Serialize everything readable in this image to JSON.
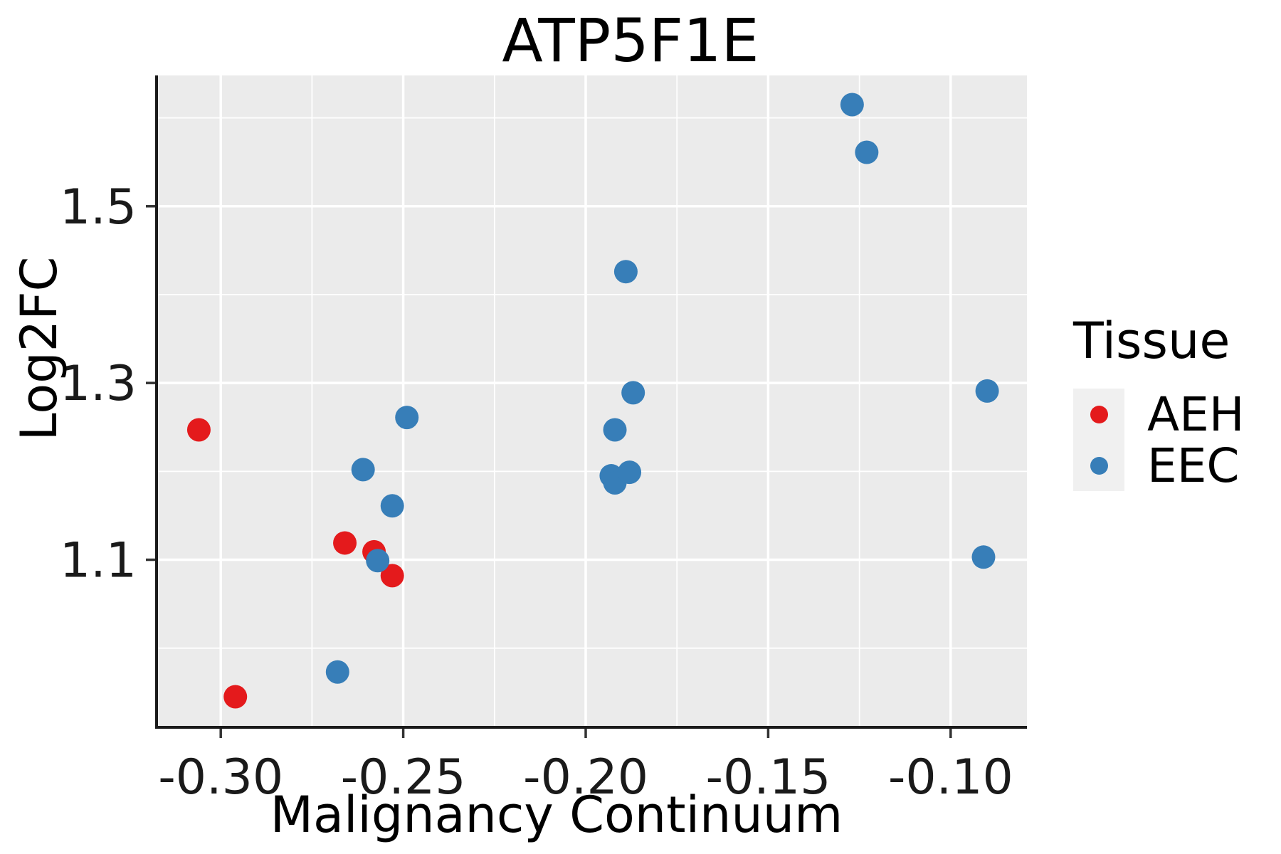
{
  "chart_data": {
    "type": "scatter",
    "title": "ATP5F1E",
    "xlabel": "Malignancy Continuum",
    "ylabel": "Log2FC",
    "xlim": [
      -0.3172,
      -0.0791
    ],
    "ylim": [
      0.912,
      1.648
    ],
    "x_major_ticks": [
      -0.3,
      -0.25,
      -0.2,
      -0.15,
      -0.1
    ],
    "x_tick_labels": [
      "-0.30",
      "-0.25",
      "-0.20",
      "-0.15",
      "-0.10"
    ],
    "x_minor_ticks": [
      -0.275,
      -0.225,
      -0.175,
      -0.125
    ],
    "y_major_ticks": [
      1.1,
      1.3,
      1.5
    ],
    "y_tick_labels": [
      "1.1",
      "1.3",
      "1.5"
    ],
    "y_minor_ticks": [
      1.0,
      1.2,
      1.4,
      1.6
    ],
    "grid": true,
    "panel_background": "#EBEBEB",
    "grid_color": "#FFFFFF",
    "legend": {
      "title": "Tissue",
      "position": "right",
      "key_background": "#F0F0F0"
    },
    "series": [
      {
        "name": "AEH",
        "color": "#E41A1C",
        "points": [
          [
            -0.306,
            1.247
          ],
          [
            -0.296,
            0.945
          ],
          [
            -0.266,
            1.119
          ],
          [
            -0.258,
            1.109
          ],
          [
            -0.253,
            1.082
          ]
        ]
      },
      {
        "name": "EEC",
        "color": "#377EB8",
        "points": [
          [
            -0.268,
            0.973
          ],
          [
            -0.261,
            1.202
          ],
          [
            -0.257,
            1.099
          ],
          [
            -0.253,
            1.161
          ],
          [
            -0.249,
            1.261
          ],
          [
            -0.193,
            1.195
          ],
          [
            -0.192,
            1.187
          ],
          [
            -0.192,
            1.247
          ],
          [
            -0.188,
            1.199
          ],
          [
            -0.187,
            1.289
          ],
          [
            -0.189,
            1.426
          ],
          [
            -0.127,
            1.615
          ],
          [
            -0.123,
            1.561
          ],
          [
            -0.09,
            1.291
          ],
          [
            -0.091,
            1.103
          ]
        ]
      }
    ]
  }
}
